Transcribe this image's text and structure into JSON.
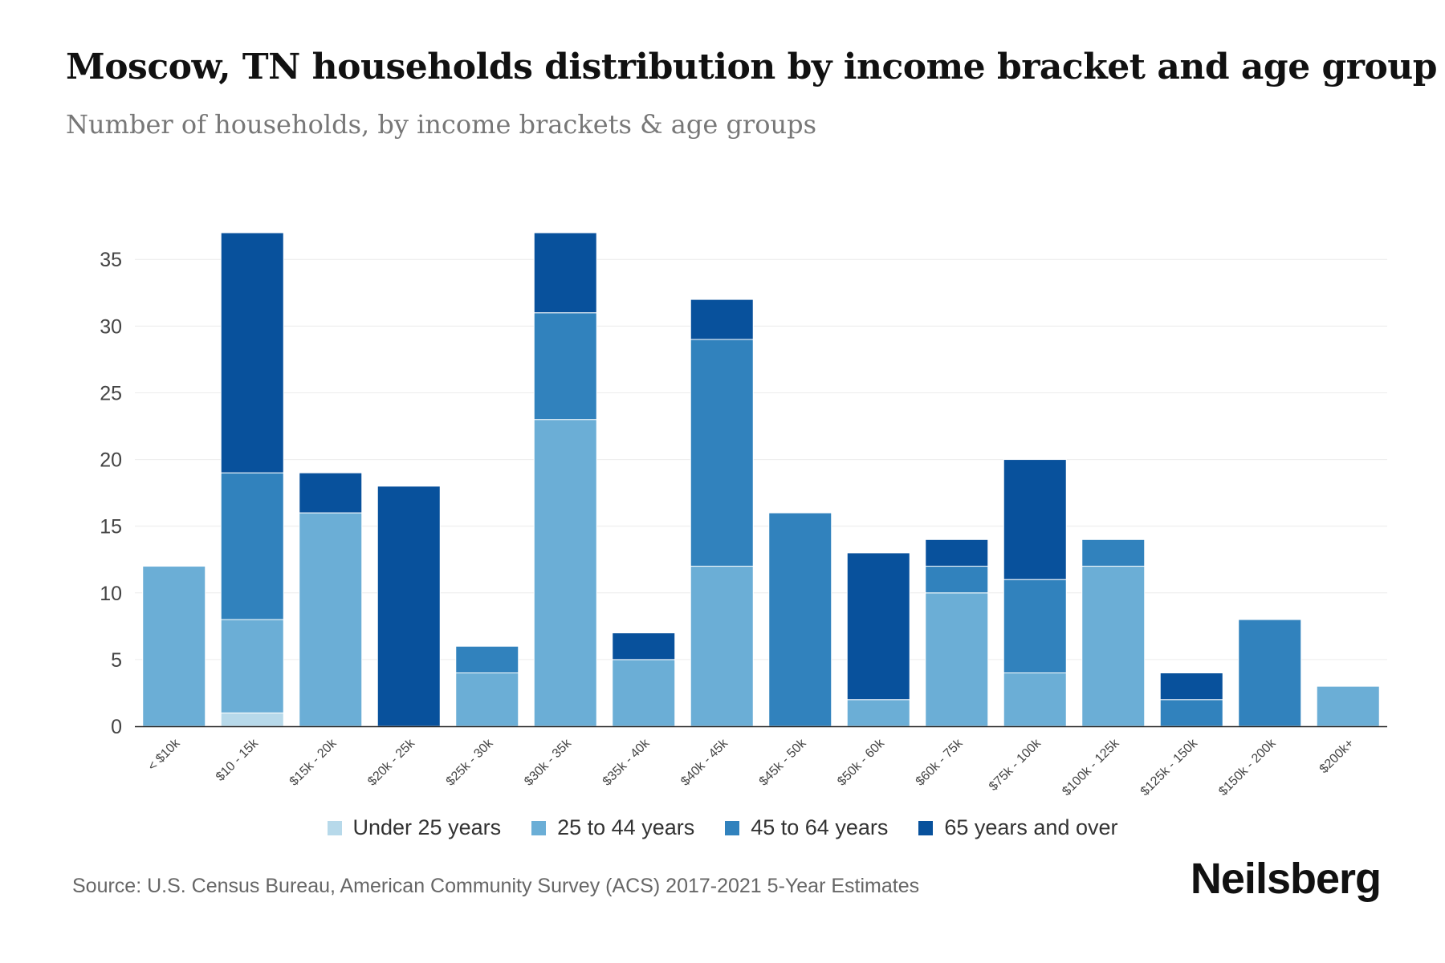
{
  "title": "Moscow, TN households distribution by income bracket and age group",
  "subtitle": "Number of households, by income brackets & age groups",
  "source": "Source: U.S. Census Bureau, American Community Survey (ACS) 2017-2021 5-Year Estimates",
  "brand": "Neilsberg",
  "chart_data": {
    "type": "bar",
    "stacked": true,
    "categories": [
      "< $10k",
      "$10 - 15k",
      "$15k - 20k",
      "$20k - 25k",
      "$25k - 30k",
      "$30k - 35k",
      "$35k - 40k",
      "$40k - 45k",
      "$45k - 50k",
      "$50k - 60k",
      "$60k - 75k",
      "$75k - 100k",
      "$100k - 125k",
      "$125k - 150k",
      "$150k - 200k",
      "$200k+"
    ],
    "series": [
      {
        "name": "Under 25 years",
        "color": "#b7d9ea",
        "values": [
          0,
          1,
          0,
          0,
          0,
          0,
          0,
          0,
          0,
          0,
          0,
          0,
          0,
          0,
          0,
          0
        ]
      },
      {
        "name": "25 to 44 years",
        "color": "#6baed6",
        "values": [
          12,
          7,
          16,
          0,
          4,
          23,
          5,
          12,
          0,
          2,
          10,
          4,
          12,
          0,
          0,
          3
        ]
      },
      {
        "name": "45 to 64 years",
        "color": "#3182bd",
        "values": [
          0,
          11,
          0,
          0,
          2,
          8,
          0,
          17,
          16,
          0,
          2,
          7,
          2,
          2,
          8,
          0
        ]
      },
      {
        "name": "65 years and over",
        "color": "#08519c",
        "values": [
          0,
          18,
          3,
          18,
          0,
          6,
          2,
          3,
          0,
          11,
          2,
          9,
          0,
          2,
          0,
          0
        ]
      }
    ],
    "yticks": [
      0,
      5,
      10,
      15,
      20,
      25,
      30,
      35
    ],
    "ylim": [
      0,
      37
    ],
    "xlabel": "",
    "ylabel": "",
    "legend_position": "bottom-center",
    "grid": true
  }
}
